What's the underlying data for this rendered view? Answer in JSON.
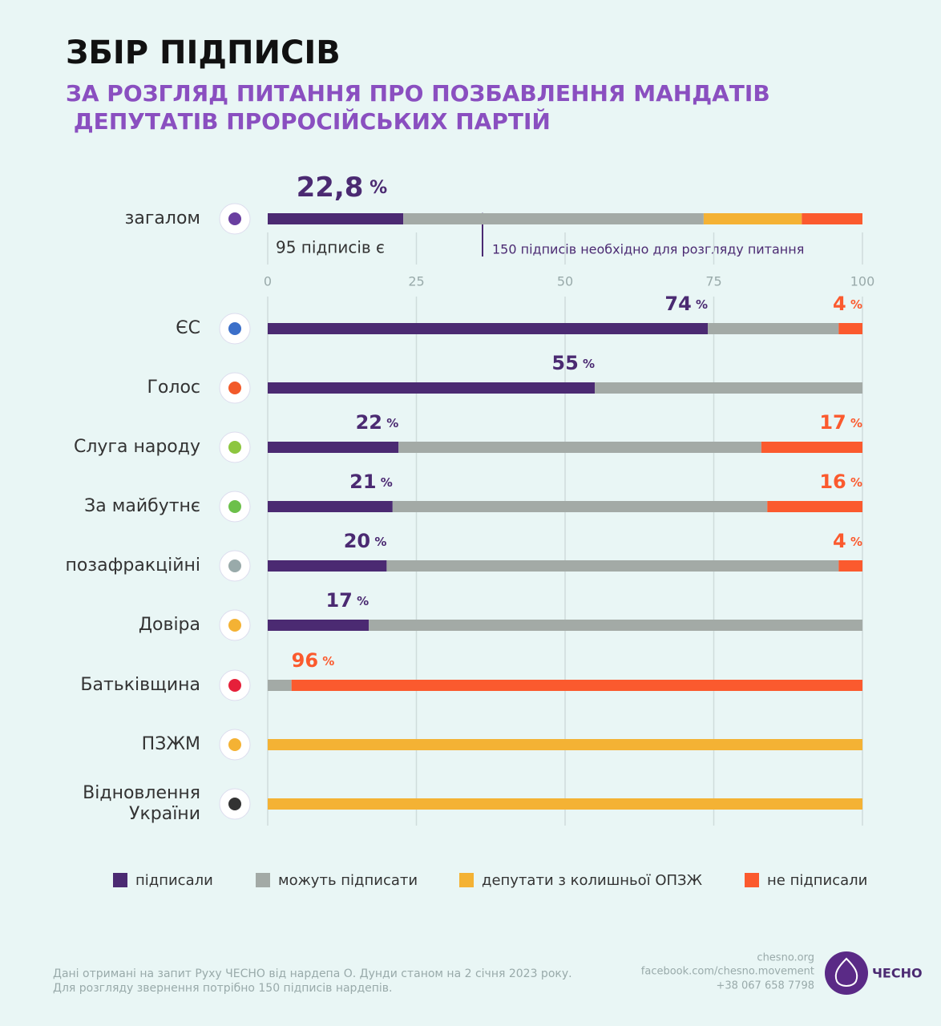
{
  "chart_data": {
    "type": "stacked-bar-horizontal",
    "title": "ЗБІР ПІДПИСІВ",
    "subtitle": "ЗА РОЗГЛЯД ПИТАННЯ ПРО ПОЗБАВЛЕННЯ МАНДАТІВ ДЕПУТАТІВ ПРОРОСІЙСЬКИХ ПАРТІЙ",
    "annotations": [
      "95 підписів є",
      "150 підписів необхідно для розгляду питання"
    ],
    "categories": [
      "загалом",
      "ЄС",
      "Голос",
      "Слуга народу",
      "За майбутнє",
      "позафракційні",
      "Довіра",
      "Батьківщина",
      "ПЗЖМ",
      "Відновлення України"
    ],
    "series": [
      {
        "name": "підписали",
        "color": "#4b2a72",
        "values": [
          22.8,
          74,
          55,
          22,
          21,
          20,
          17,
          0,
          0,
          0
        ],
        "value_labels": [
          "22,8 %",
          "74 %",
          "55 %",
          "22 %",
          "21 %",
          "20 %",
          "17 %",
          null,
          null,
          null
        ]
      },
      {
        "name": "можуть підписати",
        "color": "#a3aaa6",
        "values": [
          50.5,
          22,
          45,
          61,
          63,
          76,
          83,
          4,
          0,
          0
        ]
      },
      {
        "name": "депутати з колишньої ОПЗЖ",
        "color": "#f4b234",
        "values": [
          16.5,
          0,
          0,
          0,
          0,
          0,
          0,
          0,
          100,
          100
        ]
      },
      {
        "name": "не підписали",
        "color": "#fb5a2e",
        "values": [
          10.2,
          4,
          0,
          17,
          16,
          4,
          0,
          96,
          0,
          0
        ],
        "value_labels": [
          null,
          "4 %",
          null,
          "17 %",
          "16 %",
          "4 %",
          null,
          "96 %",
          null,
          null
        ]
      }
    ],
    "xlim": [
      0,
      100
    ],
    "xticks": [
      0,
      25,
      50,
      75,
      100
    ],
    "grid": true
  },
  "footer": {
    "note": [
      "Дані отримані на запит Руху ЧЕСНО від нардепа О. Дунди станом на 2 січня 2023 року.",
      "Для розгляду звернення потрібно 150 підписів нардепів."
    ],
    "contacts": [
      "chesno.org",
      "facebook.com/chesno.movement",
      "+38 067 658 7798"
    ],
    "logo": "ЧЕСНО"
  }
}
